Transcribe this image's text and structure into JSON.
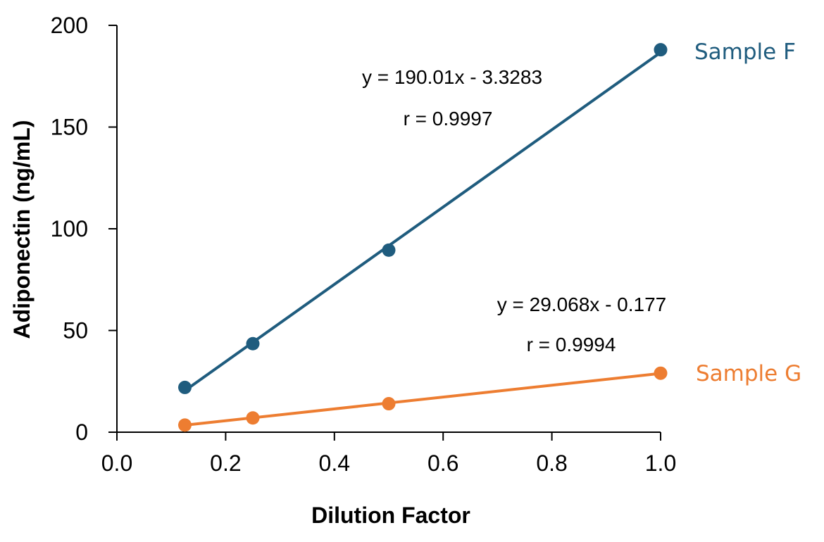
{
  "chart_data": {
    "type": "scatter",
    "title": "",
    "xlabel": "Dilution Factor",
    "ylabel": "Adiponectin (ng/mL)",
    "xlim": [
      0.0,
      1.0
    ],
    "ylim": [
      0,
      200
    ],
    "x_ticks": [
      "0.0",
      "0.2",
      "0.4",
      "0.6",
      "0.8",
      "1.0"
    ],
    "y_ticks": [
      "0",
      "50",
      "100",
      "150",
      "200"
    ],
    "grid": false,
    "legend": "none",
    "series": [
      {
        "name": "Sample F",
        "color": "#1f5c7e",
        "x": [
          0.125,
          0.25,
          0.5,
          1.0
        ],
        "y": [
          22,
          43.5,
          89.5,
          188
        ],
        "trendline": {
          "slope": 190.01,
          "intercept": -3.3283
        },
        "equation": "y = 190.01x - 3.3283",
        "r_label": "r = 0.9997"
      },
      {
        "name": "Sample G",
        "color": "#ed7d31",
        "x": [
          0.125,
          0.25,
          0.5,
          1.0
        ],
        "y": [
          3.5,
          7,
          14,
          29
        ],
        "trendline": {
          "slope": 29.068,
          "intercept": -0.177
        },
        "equation": "y = 29.068x - 0.177",
        "r_label": "r = 0.9994"
      }
    ]
  }
}
